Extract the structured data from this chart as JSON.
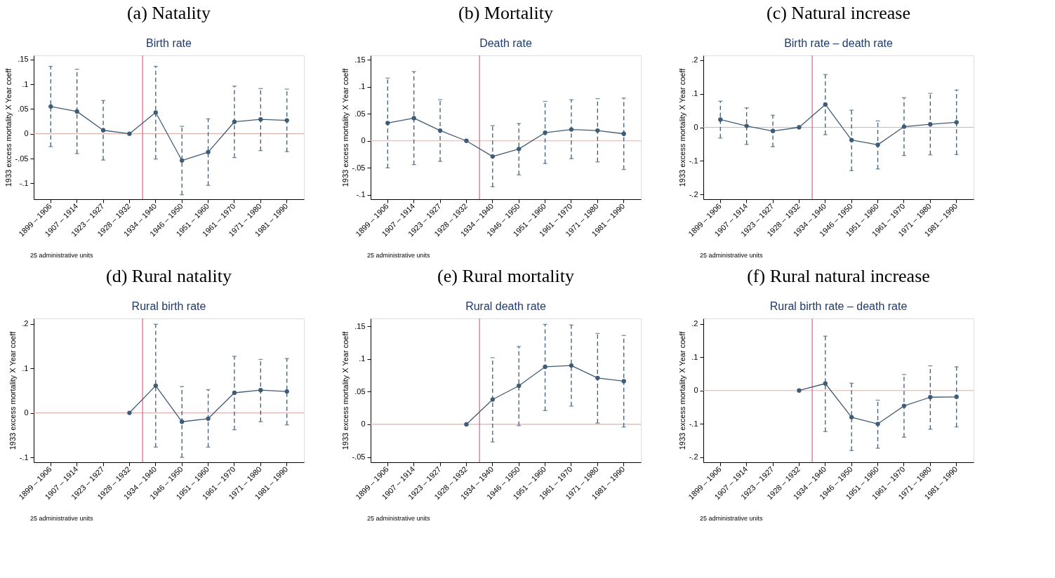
{
  "chart_data": [
    {
      "type": "line",
      "title": "(a) Natality",
      "subtitle": "Birth rate",
      "ylabel": "1933 excess mortality X Year coeff",
      "annotations": [
        "25 administrative units"
      ],
      "marker": "circle",
      "categories": [
        "1899 – 1906",
        "1907 – 1914",
        "1923 – 1927",
        "1928 – 1932",
        "1934 – 1940",
        "1946 – 1950",
        "1951 – 1960",
        "1961 – 1970",
        "1971 – 1980",
        "1981 – 1990"
      ],
      "ylim": [
        -0.132,
        0.158
      ],
      "yticks": [
        {
          "value": 0.15,
          "label": ".15"
        },
        {
          "value": 0.1,
          "label": ".1"
        },
        {
          "value": 0.05,
          "label": ".05"
        },
        {
          "value": 0,
          "label": "0"
        },
        {
          "value": -0.05,
          "label": "-.05"
        },
        {
          "value": -0.1,
          "label": "-.1"
        }
      ],
      "ref_lines": [
        {
          "axis": "y",
          "value": 0,
          "color": "#d9b3ad"
        },
        {
          "axis": "x",
          "value": "1934 – 1940",
          "color": "#e0607e"
        }
      ],
      "series": [
        {
          "color": "#3e5c76",
          "line_style": "solid",
          "values": [
            0.055,
            0.045,
            0.007,
            0,
            0.043,
            -0.054,
            -0.037,
            0.024,
            0.029,
            0.027
          ],
          "errors": [
            [
              -0.026,
              0.136
            ],
            [
              -0.04,
              0.13
            ],
            [
              -0.053,
              0.067
            ],
            null,
            [
              -0.051,
              0.136
            ],
            [
              -0.123,
              0.015
            ],
            [
              -0.104,
              0.03
            ],
            [
              -0.048,
              0.096
            ],
            [
              -0.034,
              0.091
            ],
            [
              -0.036,
              0.09
            ]
          ]
        }
      ]
    },
    {
      "type": "line",
      "title": "(b) Mortality",
      "subtitle": "Death rate",
      "ylabel": "1933 excess mortality X Year coeff",
      "annotations": [
        "25 administrative units"
      ],
      "marker": "circle",
      "categories": [
        "1899 – 1906",
        "1907 – 1914",
        "1923 – 1927",
        "1928 – 1932",
        "1934 – 1940",
        "1946 – 1950",
        "1951 – 1960",
        "1961 – 1970",
        "1971 – 1980",
        "1981 – 1990"
      ],
      "ylim": [
        -0.108,
        0.158
      ],
      "yticks": [
        {
          "value": 0.15,
          "label": ".15"
        },
        {
          "value": 0.1,
          "label": ".1"
        },
        {
          "value": 0.05,
          "label": ".05"
        },
        {
          "value": 0,
          "label": "0"
        },
        {
          "value": -0.05,
          "label": "-.05"
        },
        {
          "value": -0.1,
          "label": "-.1"
        }
      ],
      "ref_lines": [
        {
          "axis": "y",
          "value": 0,
          "color": "#d9b3ad"
        },
        {
          "axis": "x",
          "value": "1934 – 1940",
          "color": "#e0607e"
        }
      ],
      "series": [
        {
          "color": "#3e5c76",
          "line_style": "solid",
          "values": [
            0.033,
            0.042,
            0.019,
            0,
            -0.029,
            -0.015,
            0.015,
            0.021,
            0.019,
            0.013
          ],
          "errors": [
            [
              -0.05,
              0.116
            ],
            [
              -0.044,
              0.128
            ],
            [
              -0.038,
              0.076
            ],
            null,
            [
              -0.085,
              0.028
            ],
            [
              -0.063,
              0.032
            ],
            [
              -0.042,
              0.073
            ],
            [
              -0.033,
              0.076
            ],
            [
              -0.039,
              0.078
            ],
            [
              -0.053,
              0.079
            ]
          ]
        }
      ]
    },
    {
      "type": "line",
      "title": "(c) Natural increase",
      "subtitle": "Birth rate – death rate",
      "ylabel": "1933 excess mortality X Year coeff",
      "annotations": [
        "25 administrative units"
      ],
      "marker": "circle",
      "categories": [
        "1899 – 1906",
        "1907 – 1914",
        "1923 – 1927",
        "1928 – 1932",
        "1934 – 1940",
        "1946 – 1950",
        "1951 – 1960",
        "1961 – 1970",
        "1971 – 1980",
        "1981 – 1990"
      ],
      "ylim": [
        -0.214,
        0.214
      ],
      "yticks": [
        {
          "value": 0.2,
          "label": ".2"
        },
        {
          "value": 0.1,
          "label": ".1"
        },
        {
          "value": 0,
          "label": "0"
        },
        {
          "value": -0.1,
          "label": "-.1"
        },
        {
          "value": -0.2,
          "label": "-.2"
        }
      ],
      "ref_lines": [
        {
          "axis": "y",
          "value": 0,
          "color": "#d9b3ad"
        },
        {
          "axis": "x",
          "value": "1934 – 1940",
          "color": "#e0607e"
        }
      ],
      "series": [
        {
          "color": "#3e5c76",
          "line_style": "solid",
          "values": [
            0.023,
            0.004,
            -0.011,
            0,
            0.068,
            -0.038,
            -0.052,
            0.002,
            0.009,
            0.015
          ],
          "errors": [
            [
              -0.032,
              0.078
            ],
            [
              -0.051,
              0.058
            ],
            [
              -0.058,
              0.036
            ],
            null,
            [
              -0.022,
              0.157
            ],
            [
              -0.129,
              0.051
            ],
            [
              -0.124,
              0.019
            ],
            [
              -0.084,
              0.088
            ],
            [
              -0.082,
              0.101
            ],
            [
              -0.081,
              0.111
            ]
          ]
        }
      ]
    },
    {
      "type": "line",
      "title": "(d) Rural natality",
      "subtitle": "Rural birth rate",
      "ylabel": "1933 excess mortality X Year coeff",
      "annotations": [
        "25 administrative units"
      ],
      "marker": "circle",
      "categories": [
        "1899 – 1906",
        "1907 – 1914",
        "1923 – 1927",
        "1928 – 1932",
        "1934 – 1940",
        "1946 – 1950",
        "1951 – 1960",
        "1961 – 1970",
        "1971 – 1980",
        "1981 – 1990"
      ],
      "ylim": [
        -0.111,
        0.212
      ],
      "yticks": [
        {
          "value": 0.2,
          "label": ".2"
        },
        {
          "value": 0.1,
          "label": ".1"
        },
        {
          "value": 0,
          "label": "0"
        },
        {
          "value": -0.1,
          "label": "-.1"
        }
      ],
      "ref_lines": [
        {
          "axis": "y",
          "value": 0,
          "color": "#d9b3ad"
        },
        {
          "axis": "x",
          "value": "1934 – 1940",
          "color": "#e0607e"
        }
      ],
      "series": [
        {
          "color": "#3e5c76",
          "line_style": "solid",
          "values": [
            null,
            null,
            null,
            0,
            0.061,
            -0.02,
            -0.013,
            0.045,
            0.051,
            0.048
          ],
          "errors": [
            null,
            null,
            null,
            null,
            [
              -0.077,
              0.199
            ],
            [
              -0.1,
              0.059
            ],
            [
              -0.077,
              0.052
            ],
            [
              -0.038,
              0.127
            ],
            [
              -0.02,
              0.12
            ],
            [
              -0.027,
              0.122
            ]
          ]
        }
      ]
    },
    {
      "type": "line",
      "title": "(e) Rural mortality",
      "subtitle": "Rural death rate",
      "ylabel": "1933 excess mortality X Year coeff",
      "annotations": [
        "25 administrative units"
      ],
      "marker": "circle",
      "categories": [
        "1899 – 1906",
        "1907 – 1914",
        "1923 – 1927",
        "1928 – 1932",
        "1934 – 1940",
        "1946 – 1950",
        "1951 – 1960",
        "1961 – 1970",
        "1971 – 1980",
        "1981 – 1990"
      ],
      "ylim": [
        -0.058,
        0.162
      ],
      "yticks": [
        {
          "value": 0.15,
          "label": ".15"
        },
        {
          "value": 0.1,
          "label": ".1"
        },
        {
          "value": 0.05,
          "label": ".05"
        },
        {
          "value": 0,
          "label": "0"
        },
        {
          "value": -0.05,
          "label": "-.05"
        }
      ],
      "ref_lines": [
        {
          "axis": "y",
          "value": 0,
          "color": "#d9b3ad"
        },
        {
          "axis": "x",
          "value": "1934 – 1940",
          "color": "#e0607e"
        }
      ],
      "series": [
        {
          "color": "#3e5c76",
          "line_style": "solid",
          "values": [
            null,
            null,
            null,
            0,
            0.038,
            0.059,
            0.088,
            0.09,
            0.071,
            0.066
          ],
          "errors": [
            null,
            null,
            null,
            null,
            [
              -0.027,
              0.102
            ],
            [
              -0.002,
              0.119
            ],
            [
              0.021,
              0.153
            ],
            [
              0.028,
              0.152
            ],
            [
              0.002,
              0.139
            ],
            [
              -0.004,
              0.136
            ]
          ]
        }
      ]
    },
    {
      "type": "line",
      "title": "(f) Rural natural increase",
      "subtitle": "Rural birth rate – death rate",
      "ylabel": "1933 excess mortality X Year coeff",
      "annotations": [
        "25 administrative units"
      ],
      "marker": "circle",
      "categories": [
        "1899 – 1906",
        "1907 – 1914",
        "1923 – 1927",
        "1928 – 1932",
        "1934 – 1940",
        "1946 – 1950",
        "1951 – 1960",
        "1961 – 1970",
        "1971 – 1980",
        "1981 – 1990"
      ],
      "ylim": [
        -0.215,
        0.216
      ],
      "yticks": [
        {
          "value": 0.2,
          "label": ".2"
        },
        {
          "value": 0.1,
          "label": ".1"
        },
        {
          "value": 0,
          "label": "0"
        },
        {
          "value": -0.1,
          "label": "-.1"
        },
        {
          "value": -0.2,
          "label": "-.2"
        }
      ],
      "ref_lines": [
        {
          "axis": "y",
          "value": 0,
          "color": "#d9b3ad"
        },
        {
          "axis": "x",
          "value": "1934 – 1940",
          "color": "#e0607e"
        }
      ],
      "series": [
        {
          "color": "#3e5c76",
          "line_style": "solid",
          "values": [
            null,
            null,
            null,
            0,
            0.021,
            -0.08,
            -0.1,
            -0.046,
            -0.02,
            -0.019
          ],
          "errors": [
            null,
            null,
            null,
            null,
            [
              -0.123,
              0.163
            ],
            [
              -0.18,
              0.022
            ],
            [
              -0.173,
              -0.029
            ],
            [
              -0.14,
              0.048
            ],
            [
              -0.116,
              0.074
            ],
            [
              -0.109,
              0.071
            ]
          ]
        }
      ]
    }
  ]
}
